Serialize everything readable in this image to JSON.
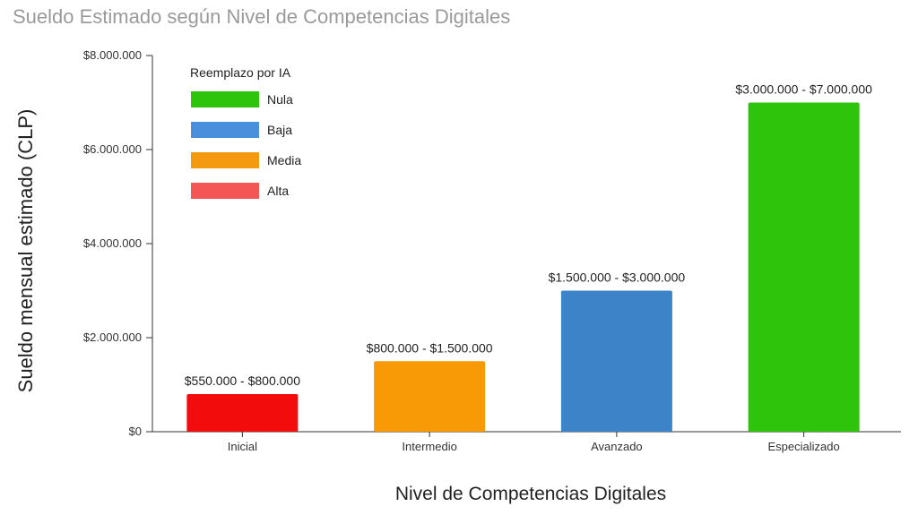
{
  "chart_data": {
    "type": "bar",
    "title": "Sueldo Estimado según Nivel de Competencias Digitales",
    "xlabel": "Nivel de Competencias Digitales",
    "ylabel": "Sueldo mensual estimado (CLP)",
    "ylim": [
      0,
      8000000
    ],
    "yticks": [
      0,
      2000000,
      4000000,
      6000000,
      8000000
    ],
    "ytick_labels": [
      "$0",
      "$2.000.000",
      "$4.000.000",
      "$6.000.000",
      "$8.000.000"
    ],
    "categories": [
      "Inicial",
      "Intermedio",
      "Avanzado",
      "Especializado"
    ],
    "values": [
      800000,
      1500000,
      3000000,
      7000000
    ],
    "data_labels": [
      "$550.000 - $800.000",
      "$800.000 - $1.500.000",
      "$1.500.000 - $3.000.000",
      "$3.000.000 - $7.000.000"
    ],
    "bar_colors": [
      "#f20c0c",
      "#f79a05",
      "#3d83c8",
      "#2fc40c"
    ],
    "grid": false,
    "legend": {
      "title": "Reemplazo por IA",
      "placement": "top-left",
      "entries": [
        {
          "label": "Nula",
          "color": "#2fc40c"
        },
        {
          "label": "Baja",
          "color": "#4a8fdb"
        },
        {
          "label": "Media",
          "color": "#f49a10"
        },
        {
          "label": "Alta",
          "color": "#f45555"
        }
      ]
    }
  }
}
